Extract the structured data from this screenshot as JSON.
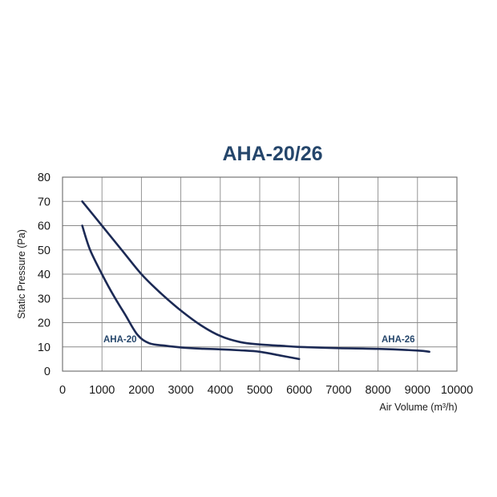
{
  "chart_data": {
    "type": "line",
    "title": "AHA-20/26",
    "xlabel": "Air Volume (m³/h)",
    "ylabel": "Static Pressure (Pa)",
    "xlim": [
      0,
      10000
    ],
    "ylim": [
      0,
      80
    ],
    "x_ticks": [
      "0",
      "1000",
      "2000",
      "3000",
      "4000",
      "5000",
      "6000",
      "7000",
      "8000",
      "9000",
      "10000"
    ],
    "y_ticks": [
      "0",
      "10",
      "20",
      "30",
      "40",
      "50",
      "60",
      "70",
      "80"
    ],
    "grid": true,
    "line_color": "#1c2a55",
    "title_color": "#25466b",
    "series": [
      {
        "name": "AHA-20",
        "points": [
          [
            500,
            60
          ],
          [
            700,
            50
          ],
          [
            1000,
            40
          ],
          [
            1300,
            31
          ],
          [
            1600,
            23
          ],
          [
            1900,
            15
          ],
          [
            2200,
            11.5
          ],
          [
            2600,
            10.5
          ],
          [
            3000,
            9.8
          ],
          [
            3500,
            9.3
          ],
          [
            4000,
            9
          ],
          [
            4500,
            8.6
          ],
          [
            5000,
            8
          ],
          [
            5500,
            6.5
          ],
          [
            6000,
            5
          ]
        ]
      },
      {
        "name": "AHA-26",
        "points": [
          [
            500,
            70
          ],
          [
            1000,
            60
          ],
          [
            1500,
            50
          ],
          [
            2000,
            40
          ],
          [
            2500,
            32
          ],
          [
            3000,
            25
          ],
          [
            3500,
            19
          ],
          [
            4000,
            14.5
          ],
          [
            4500,
            12
          ],
          [
            5000,
            11
          ],
          [
            5500,
            10.5
          ],
          [
            6000,
            10
          ],
          [
            7000,
            9.5
          ],
          [
            8000,
            9.2
          ],
          [
            9000,
            8.5
          ],
          [
            9300,
            8
          ]
        ]
      }
    ]
  }
}
